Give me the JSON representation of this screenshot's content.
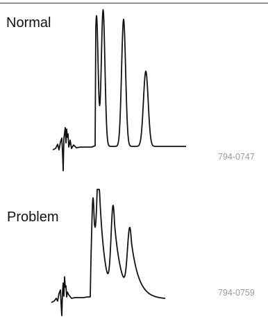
{
  "chart_data": [
    {
      "type": "line",
      "title": "Normal",
      "figure_id": "794-0747",
      "grid": false,
      "axes_shown": false,
      "peaks": [
        {
          "relative_height": 0.955,
          "shape": "sharp"
        },
        {
          "relative_height": 1.0,
          "shape": "sharp"
        },
        {
          "relative_height": 0.93,
          "shape": "sharp"
        },
        {
          "relative_height": 0.55,
          "shape": "sharp"
        }
      ]
    },
    {
      "type": "line",
      "title": "Problem",
      "figure_id": "794-0759",
      "grid": false,
      "axes_shown": false,
      "peaks": [
        {
          "relative_height": 0.92,
          "shape": "tailing"
        },
        {
          "relative_height": 0.95,
          "shape": "tailing"
        },
        {
          "relative_height": 0.78,
          "shape": "tailing"
        },
        {
          "relative_height": 0.58,
          "shape": "tailing"
        }
      ]
    }
  ]
}
